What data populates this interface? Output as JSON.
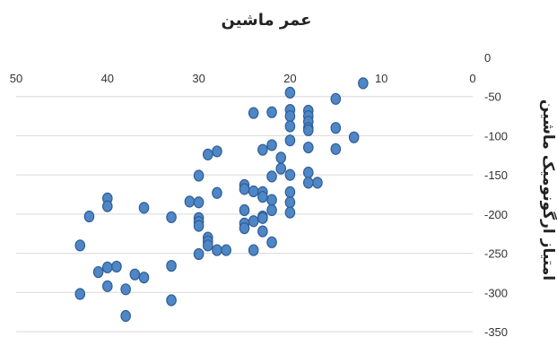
{
  "chart_data": {
    "type": "scatter",
    "title": "عمر ماشین",
    "xlabel": "",
    "ylabel": "امتیاز ارگونومیک ماشین",
    "x_axis_position": "top",
    "x_reversed": true,
    "y_axis_position": "right",
    "xlim": [
      0,
      50
    ],
    "ylim": [
      -350,
      0
    ],
    "x_ticks": [
      "0",
      "10",
      "20",
      "30",
      "40",
      "50"
    ],
    "y_ticks": [
      "0",
      "-50",
      "-100",
      "-150",
      "-200",
      "-250",
      "-300",
      "-350"
    ],
    "grid": true,
    "legend": false,
    "marker_color": "#4f86c6",
    "points": [
      {
        "x": 12,
        "y": -33
      },
      {
        "x": 20,
        "y": -45
      },
      {
        "x": 15,
        "y": -53
      },
      {
        "x": 18,
        "y": -68
      },
      {
        "x": 20,
        "y": -67
      },
      {
        "x": 22,
        "y": -70
      },
      {
        "x": 24,
        "y": -71
      },
      {
        "x": 18,
        "y": -75
      },
      {
        "x": 20,
        "y": -75
      },
      {
        "x": 18,
        "y": -82
      },
      {
        "x": 15,
        "y": -90
      },
      {
        "x": 18,
        "y": -90
      },
      {
        "x": 20,
        "y": -88
      },
      {
        "x": 18,
        "y": -93
      },
      {
        "x": 13,
        "y": -102
      },
      {
        "x": 20,
        "y": -106
      },
      {
        "x": 22,
        "y": -112
      },
      {
        "x": 23,
        "y": -118
      },
      {
        "x": 15,
        "y": -117
      },
      {
        "x": 18,
        "y": -115
      },
      {
        "x": 21,
        "y": -128
      },
      {
        "x": 28,
        "y": -120
      },
      {
        "x": 29,
        "y": -124
      },
      {
        "x": 21,
        "y": -142
      },
      {
        "x": 18,
        "y": -147
      },
      {
        "x": 20,
        "y": -150
      },
      {
        "x": 30,
        "y": -151
      },
      {
        "x": 17,
        "y": -160
      },
      {
        "x": 18,
        "y": -160
      },
      {
        "x": 22,
        "y": -152
      },
      {
        "x": 25,
        "y": -163
      },
      {
        "x": 25,
        "y": -168
      },
      {
        "x": 24,
        "y": -171
      },
      {
        "x": 23,
        "y": -172
      },
      {
        "x": 23,
        "y": -178
      },
      {
        "x": 28,
        "y": -173
      },
      {
        "x": 20,
        "y": -172
      },
      {
        "x": 22,
        "y": -182
      },
      {
        "x": 20,
        "y": -185
      },
      {
        "x": 31,
        "y": -184
      },
      {
        "x": 30,
        "y": -185
      },
      {
        "x": 40,
        "y": -180
      },
      {
        "x": 40,
        "y": -190
      },
      {
        "x": 36,
        "y": -192
      },
      {
        "x": 25,
        "y": -195
      },
      {
        "x": 20,
        "y": -198
      },
      {
        "x": 22,
        "y": -195
      },
      {
        "x": 23,
        "y": -203
      },
      {
        "x": 23,
        "y": -205
      },
      {
        "x": 24,
        "y": -209
      },
      {
        "x": 33,
        "y": -204
      },
      {
        "x": 30,
        "y": -205
      },
      {
        "x": 30,
        "y": -210
      },
      {
        "x": 25,
        "y": -212
      },
      {
        "x": 30,
        "y": -215
      },
      {
        "x": 42,
        "y": -203
      },
      {
        "x": 25,
        "y": -218
      },
      {
        "x": 23,
        "y": -222
      },
      {
        "x": 29,
        "y": -230
      },
      {
        "x": 29,
        "y": -235
      },
      {
        "x": 22,
        "y": -236
      },
      {
        "x": 29,
        "y": -240
      },
      {
        "x": 43,
        "y": -240
      },
      {
        "x": 28,
        "y": -246
      },
      {
        "x": 27,
        "y": -246
      },
      {
        "x": 24,
        "y": -246
      },
      {
        "x": 30,
        "y": -251
      },
      {
        "x": 33,
        "y": -266
      },
      {
        "x": 40,
        "y": -268
      },
      {
        "x": 39,
        "y": -267
      },
      {
        "x": 41,
        "y": -274
      },
      {
        "x": 37,
        "y": -277
      },
      {
        "x": 36,
        "y": -281
      },
      {
        "x": 40,
        "y": -292
      },
      {
        "x": 38,
        "y": -296
      },
      {
        "x": 43,
        "y": -302
      },
      {
        "x": 33,
        "y": -310
      },
      {
        "x": 38,
        "y": -330
      }
    ]
  }
}
